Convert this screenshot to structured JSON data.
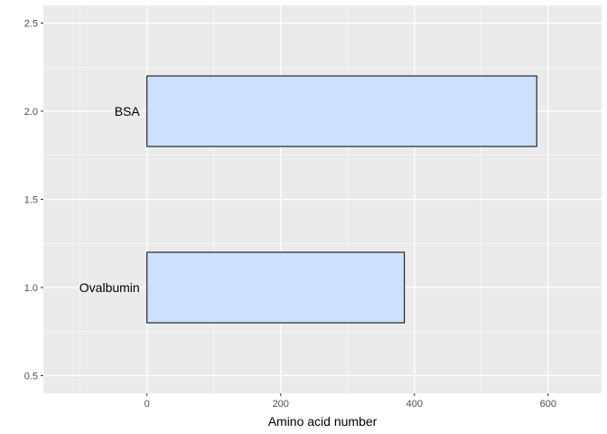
{
  "chart_data": {
    "type": "bar",
    "orientation": "horizontal",
    "xlabel": "Amino acid number",
    "ylabel": "",
    "title": "",
    "xlim": [
      -155,
      680
    ],
    "ylim": [
      0.4,
      2.6
    ],
    "x_ticks": [
      0,
      200,
      400,
      600
    ],
    "x_tick_labels": [
      "0",
      "200",
      "400",
      "600"
    ],
    "y_ticks": [
      0.5,
      1.0,
      1.5,
      2.0,
      2.5
    ],
    "y_tick_labels": [
      "0.5",
      "1.0",
      "1.5",
      "2.0",
      "2.5"
    ],
    "bars": [
      {
        "label": "Ovalbumin",
        "x_start": 0,
        "x_end": 385,
        "y_min": 0.8,
        "y_max": 1.2
      },
      {
        "label": "BSA",
        "x_start": 0,
        "x_end": 583,
        "y_min": 1.8,
        "y_max": 2.2
      }
    ],
    "grid": true,
    "colors": {
      "panel": "#ebebeb",
      "grid": "#ffffff",
      "bar_fill": "#cce0ff",
      "bar_stroke": "#000000"
    }
  }
}
